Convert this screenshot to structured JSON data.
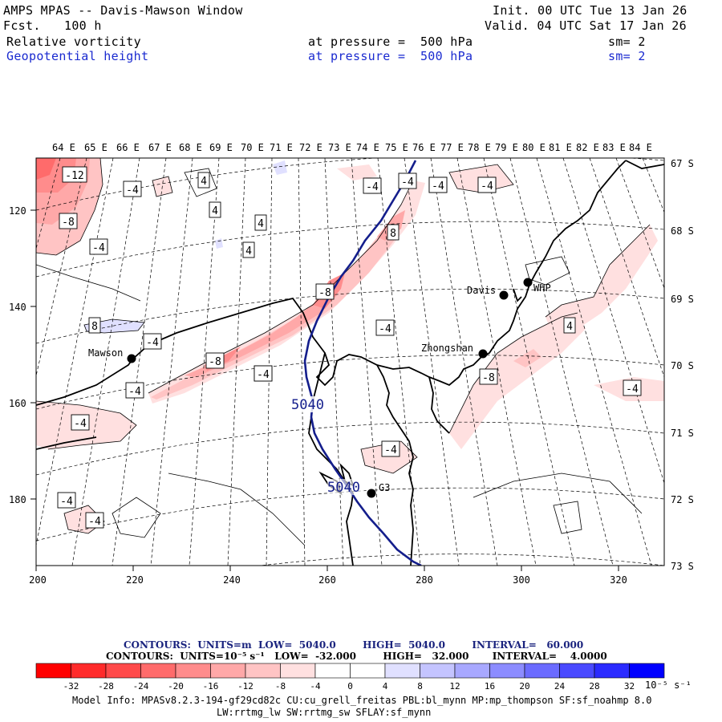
{
  "header": {
    "title": "AMPS MPAS -- Davis-Mawson Window",
    "fcst_label": "Fcst.",
    "fcst_value": "100 h",
    "init": "Init. 00 UTC Tue 13 Jan 26",
    "valid": "Valid. 04 UTC Sat 17 Jan 26",
    "field1": {
      "name": "Relative vorticity",
      "pressure": "at pressure =  500 hPa",
      "sm": "sm= 2"
    },
    "field2": {
      "name": "Geopotential height",
      "pressure": "at pressure =  500 hPa",
      "sm": "sm= 2"
    }
  },
  "top_axis_labels": [
    "64 E",
    "65 E",
    "66 E",
    "67 E",
    "68 E",
    "69 E",
    "70 E",
    "71 E",
    "72 E",
    "73 E",
    "74 E",
    "75 E",
    "76 E",
    "77 E",
    "78 E",
    "79 E",
    "80 E",
    "81 E",
    "82 E",
    "83 E",
    "84 E"
  ],
  "right_axis_labels": [
    "67 S",
    "68 S",
    "69 S",
    "70 S",
    "71 S",
    "72 S",
    "73 S"
  ],
  "left_axis_labels": [
    "120",
    "140",
    "160",
    "180"
  ],
  "bottom_axis_labels": [
    "200",
    "220",
    "240",
    "260",
    "280",
    "300",
    "320"
  ],
  "stations": [
    {
      "name": "Davis"
    },
    {
      "name": "WHP"
    },
    {
      "name": "Mawson"
    },
    {
      "name": "Zhongshan"
    },
    {
      "name": "G3"
    }
  ],
  "contour_labels_height": [
    "5040",
    "5040"
  ],
  "vorticity_labels": [
    "-12",
    "-4",
    "4",
    "4",
    "4",
    "4",
    "4",
    "-4",
    "-4",
    "-4",
    "-8",
    "-4",
    "8",
    "-8",
    "-8",
    "-4",
    "-4",
    "-4",
    "-4",
    "-4",
    "-8",
    "-4",
    "-4",
    "-4",
    "-4",
    "4",
    "-4",
    "-4",
    "-4",
    "8",
    "-4"
  ],
  "colorbar": {
    "colors": [
      "#ff0000",
      "#ff2b2b",
      "#ff4a4a",
      "#ff6b6b",
      "#ff8c8c",
      "#ffa8a8",
      "#ffc4c4",
      "#ffe0e0",
      "#ffffff",
      "#ffffff",
      "#e0e0ff",
      "#c4c4ff",
      "#a8a8ff",
      "#8c8cff",
      "#6b6bff",
      "#4a4aff",
      "#2b2bff",
      "#0000ff"
    ],
    "ticks": [
      "-32",
      "-28",
      "-24",
      "-20",
      "-16",
      "-12",
      "-8",
      "-4",
      "0",
      "4",
      "8",
      "12",
      "16",
      "20",
      "24",
      "28",
      "32"
    ],
    "units": "10⁻⁵ s⁻¹"
  },
  "contour_info": {
    "line1": "CONTOURS:  UNITS=m  LOW=  5040.0        HIGH=  5040.0        INTERVAL=   60.000",
    "line2": "CONTOURS:  UNITS=10⁻⁵ s⁻¹   LOW=  -32.000        HIGH=   32.000       INTERVAL=    4.0000"
  },
  "model_info": {
    "line1": "Model Info: MPASv8.2.3-194-gf29cd82c CU:cu_grell_freitas PBL:bl_mynn MP:mp_thompson SF:sf_noahmp 8.0",
    "line2": "LW:rrtmg_lw SW:rrtmg_sw SFLAY:sf_mynn"
  }
}
